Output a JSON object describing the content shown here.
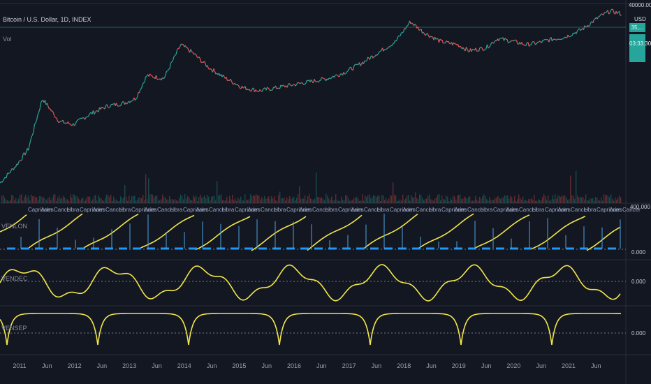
{
  "header": {
    "symbol": "Bitcoin / U.S. Dollar, 1D, INDEX",
    "indicator": "Vol"
  },
  "price_axis": {
    "top_label": "40000.00",
    "currency": "USD",
    "last_price": "35,...",
    "countdown": "03:33:30"
  },
  "pane_labels": {
    "p1": "VENLON",
    "p2": "VENDEC",
    "p3": "VENSEP"
  },
  "pane_axis": {
    "p1_top": "400.000",
    "p1_zero": "0.000",
    "p2_zero": "0.000",
    "p3_zero": "0.000"
  },
  "colors": {
    "background": "#131722",
    "up": "#26a69a",
    "down": "#ef5350",
    "indicator": "#f2e64b",
    "dash": "#2196f3",
    "grid": "#2a2e39"
  },
  "sign_labels": [
    "Capricorn",
    "Aries",
    "Cancer",
    "Libra",
    "Capricorn",
    "Aries",
    "Cancer",
    "Libra",
    "Capricorn",
    "Aries",
    "Cancer",
    "Libra",
    "Capricorn",
    "Aries",
    "Cancer",
    "Libra",
    "Capricorn",
    "Aries",
    "Cancer",
    "Libra",
    "Capricorn",
    "Aries",
    "Cancer",
    "Libra",
    "Capricorn",
    "Aries",
    "Cancer",
    "Libra",
    "Capricorn",
    "Aries",
    "Cancer",
    "Libra",
    "Capricorn",
    "Aries",
    "Cancer",
    "Libra",
    "Capricorn",
    "Aries",
    "Cancer",
    "Libra",
    "Capricorn",
    "Aries",
    "Cancer",
    "Libra",
    "Capricorn",
    "Aries",
    "Cancer"
  ],
  "x_axis": {
    "labels": [
      "2011",
      "Jun",
      "2012",
      "Jun",
      "2013",
      "Jun",
      "2014",
      "Jun",
      "2015",
      "Jun",
      "2016",
      "Jun",
      "2017",
      "Jun",
      "2018",
      "Jun",
      "2019",
      "Jun",
      "2020",
      "Jun",
      "2021",
      "Jun"
    ]
  },
  "chart_data": {
    "type": "line",
    "series": [],
    "x": [
      2010.7,
      2011.0,
      2011.2,
      2011.45,
      2011.75,
      2012.0,
      2012.3,
      2012.6,
      2012.9,
      2013.1,
      2013.3,
      2013.6,
      2013.9,
      2014.1,
      2014.4,
      2014.7,
      2015.0,
      2015.3,
      2015.6,
      2015.9,
      2016.2,
      2016.5,
      2016.8,
      2017.1,
      2017.4,
      2017.7,
      2017.96,
      2018.2,
      2018.5,
      2018.8,
      2019.0,
      2019.3,
      2019.5,
      2019.8,
      2020.0,
      2020.2,
      2020.4,
      2020.7,
      2021.0,
      2021.3,
      2021.5,
      2021.7
    ],
    "y_rel": [
      0.0,
      0.12,
      0.22,
      0.55,
      0.4,
      0.38,
      0.45,
      0.5,
      0.52,
      0.55,
      0.7,
      0.68,
      0.9,
      0.85,
      0.75,
      0.68,
      0.62,
      0.6,
      0.62,
      0.64,
      0.66,
      0.68,
      0.72,
      0.78,
      0.85,
      0.92,
      1.05,
      0.98,
      0.92,
      0.9,
      0.86,
      0.88,
      0.94,
      0.92,
      0.9,
      0.91,
      0.93,
      0.95,
      1.0,
      1.08,
      1.12,
      1.1
    ],
    "x_ticks": [
      "2011",
      "Jun",
      "2012",
      "Jun",
      "2013",
      "Jun",
      "2014",
      "Jun",
      "2015",
      "Jun",
      "2016",
      "Jun",
      "2017",
      "Jun",
      "2018",
      "Jun",
      "2019",
      "Jun",
      "2020",
      "Jun",
      "2021",
      "Jun"
    ],
    "y_ticks": [
      "40000.00"
    ],
    "grid": true
  }
}
